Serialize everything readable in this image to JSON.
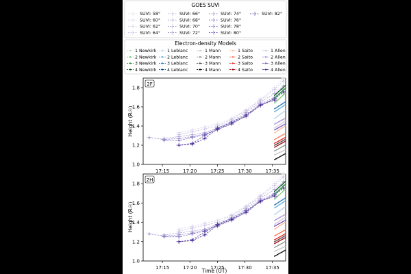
{
  "suvi_legend": {
    "title": "GOES SUVI",
    "entries": [
      {
        "label": "SUVI: 58°",
        "color": "#dcd6ec"
      },
      {
        "label": "SUVI: 60°",
        "color": "#d2cbe8"
      },
      {
        "label": "SUVI: 62°",
        "color": "#c8bfe3"
      },
      {
        "label": "SUVI: 64°",
        "color": "#bdb3df"
      },
      {
        "label": "SUVI: 66°",
        "color": "#b0a5d8"
      },
      {
        "label": "SUVI: 68°",
        "color": "#a397d1"
      },
      {
        "label": "SUVI: 70°",
        "color": "#9689c9"
      },
      {
        "label": "SUVI: 72°",
        "color": "#8a7ac2"
      },
      {
        "label": "SUVI: 74°",
        "color": "#7d6bba"
      },
      {
        "label": "SUVI: 76°",
        "color": "#705cb2"
      },
      {
        "label": "SUVI: 78°",
        "color": "#644ca9"
      },
      {
        "label": "SUVI: 80°",
        "color": "#563c9f"
      },
      {
        "label": "SUVI: 82°",
        "color": "#4a2c95"
      }
    ]
  },
  "model_legend": {
    "title": "Electron-density Models",
    "entries": [
      {
        "label": "1 Newkirk",
        "color": "#b9e3b8"
      },
      {
        "label": "2 Newkirk",
        "color": "#7fc97f"
      },
      {
        "label": "3 Newkirk",
        "color": "#2e9a3a"
      },
      {
        "label": "4 Newkirk",
        "color": "#0b5e20"
      },
      {
        "label": "1 Leblanc",
        "color": "#b7d4ea"
      },
      {
        "label": "2 Leblanc",
        "color": "#6baed6"
      },
      {
        "label": "3 Leblanc",
        "color": "#2a7ab8"
      },
      {
        "label": "4 Leblanc",
        "color": "#0b4584"
      },
      {
        "label": "1 Mann",
        "color": "#c8c8c8"
      },
      {
        "label": "2 Mann",
        "color": "#969696"
      },
      {
        "label": "3 Mann",
        "color": "#525252"
      },
      {
        "label": "4 Mann",
        "color": "#111111"
      },
      {
        "label": "1 Saito",
        "color": "#fcbba1"
      },
      {
        "label": "2 Saito",
        "color": "#fb7b5b"
      },
      {
        "label": "3 Saito",
        "color": "#e32f27"
      },
      {
        "label": "4 Saito",
        "color": "#9e0d14"
      },
      {
        "label": "1 Allen",
        "color": "#d4c8e4"
      },
      {
        "label": "2 Allen",
        "color": "#a995c9"
      },
      {
        "label": "3 Allen",
        "color": "#7a5fb0"
      },
      {
        "label": "4 Allen",
        "color": "#4a2c8a"
      }
    ]
  },
  "chart_data": [
    {
      "type": "scatter",
      "panel_label": "2F",
      "xlabel": "",
      "ylabel": "Height (R☉)",
      "x_ticks": [
        "17:15",
        "17:20",
        "17:25",
        "17:30",
        "17:35"
      ],
      "x_tick_minutes": [
        15,
        20,
        25,
        30,
        35
      ],
      "xlim_minutes": [
        11.5,
        37.4
      ],
      "ylim": [
        1.0,
        1.9
      ],
      "y_ticks": [
        1.0,
        1.2,
        1.4,
        1.6,
        1.8
      ],
      "suvi_series": [
        {
          "angle": "58°",
          "x": [
            18.0,
            20.4,
            22.7,
            25.0,
            27.6,
            30.2,
            32.8,
            35.4,
            37.0
          ],
          "y": [
            1.33,
            1.36,
            1.39,
            1.42,
            1.48,
            1.57,
            1.68,
            1.8,
            1.9
          ]
        },
        {
          "angle": "62°",
          "x": [
            18.0,
            20.4,
            22.7,
            25.0,
            27.6,
            30.2,
            32.8,
            35.4,
            37.0
          ],
          "y": [
            1.31,
            1.34,
            1.37,
            1.4,
            1.47,
            1.56,
            1.67,
            1.78,
            1.87
          ]
        },
        {
          "angle": "66°",
          "x": [
            15.3,
            18.0,
            20.4,
            22.7,
            25.0,
            27.6,
            30.2,
            32.8,
            35.4,
            37.0
          ],
          "y": [
            1.27,
            1.29,
            1.31,
            1.33,
            1.38,
            1.45,
            1.54,
            1.65,
            1.74,
            1.82
          ]
        },
        {
          "angle": "70°",
          "x": [
            12.6,
            15.3,
            18.0,
            20.4,
            22.7,
            25.0,
            27.6,
            30.2,
            32.8,
            35.4,
            37.0
          ],
          "y": [
            1.28,
            1.26,
            1.27,
            1.29,
            1.32,
            1.37,
            1.43,
            1.52,
            1.63,
            1.7,
            1.78
          ]
        },
        {
          "angle": "74°",
          "x": [
            15.3,
            18.0,
            20.4,
            22.7,
            25.0,
            27.6,
            30.2,
            32.8,
            35.4,
            37.0
          ],
          "y": [
            1.25,
            1.25,
            1.28,
            1.31,
            1.36,
            1.42,
            1.51,
            1.62,
            1.68,
            1.76
          ]
        },
        {
          "angle": "78°",
          "x": [
            18.0,
            20.4,
            22.7,
            25.0,
            27.6,
            30.2,
            32.8,
            35.4,
            37.0
          ],
          "y": [
            1.2,
            1.22,
            1.3,
            1.38,
            1.44,
            1.52,
            1.61,
            1.69,
            1.75
          ]
        },
        {
          "angle": "82°",
          "x": [
            18.0,
            20.4,
            22.7,
            25.0,
            27.6,
            30.2,
            32.8,
            35.4
          ],
          "y": [
            1.2,
            1.21,
            1.27,
            1.37,
            1.43,
            1.5,
            1.62,
            1.67
          ]
        }
      ]
    },
    {
      "type": "scatter",
      "panel_label": "2H",
      "xlabel": "Time (UT)",
      "ylabel": "Height (R☉)",
      "x_ticks": [
        "17:15",
        "17:20",
        "17:25",
        "17:30",
        "17:35"
      ],
      "x_tick_minutes": [
        15,
        20,
        25,
        30,
        35
      ],
      "xlim_minutes": [
        11.5,
        37.4
      ],
      "ylim": [
        1.0,
        1.9
      ],
      "y_ticks": [
        1.0,
        1.2,
        1.4,
        1.6,
        1.8
      ],
      "suvi_series": [
        {
          "angle": "58°",
          "x": [
            18.0,
            20.4,
            22.7,
            25.0,
            27.6,
            30.2,
            32.8,
            35.4,
            37.0
          ],
          "y": [
            1.33,
            1.36,
            1.39,
            1.42,
            1.48,
            1.57,
            1.68,
            1.8,
            1.9
          ]
        },
        {
          "angle": "62°",
          "x": [
            18.0,
            20.4,
            22.7,
            25.0,
            27.6,
            30.2,
            32.8,
            35.4,
            37.0
          ],
          "y": [
            1.31,
            1.34,
            1.37,
            1.4,
            1.47,
            1.56,
            1.67,
            1.78,
            1.87
          ]
        },
        {
          "angle": "66°",
          "x": [
            15.3,
            18.0,
            20.4,
            22.7,
            25.0,
            27.6,
            30.2,
            32.8,
            35.4,
            37.0
          ],
          "y": [
            1.27,
            1.29,
            1.31,
            1.33,
            1.38,
            1.45,
            1.54,
            1.65,
            1.74,
            1.82
          ]
        },
        {
          "angle": "70°",
          "x": [
            12.6,
            15.3,
            18.0,
            20.4,
            22.7,
            25.0,
            27.6,
            30.2,
            32.8,
            35.4,
            37.0
          ],
          "y": [
            1.28,
            1.26,
            1.27,
            1.29,
            1.32,
            1.37,
            1.43,
            1.52,
            1.63,
            1.7,
            1.78
          ]
        },
        {
          "angle": "74°",
          "x": [
            15.3,
            18.0,
            20.4,
            22.7,
            25.0,
            27.6,
            30.2,
            32.8,
            35.4,
            37.0
          ],
          "y": [
            1.25,
            1.25,
            1.28,
            1.31,
            1.36,
            1.42,
            1.51,
            1.62,
            1.68,
            1.76
          ]
        },
        {
          "angle": "78°",
          "x": [
            18.0,
            20.4,
            22.7,
            25.0,
            27.6,
            30.2,
            32.8,
            35.4,
            37.0
          ],
          "y": [
            1.2,
            1.22,
            1.3,
            1.38,
            1.44,
            1.52,
            1.61,
            1.69,
            1.75
          ]
        },
        {
          "angle": "82°",
          "x": [
            18.0,
            20.4,
            22.7,
            25.0,
            27.6,
            30.2,
            32.8,
            35.4
          ],
          "y": [
            1.2,
            1.21,
            1.27,
            1.37,
            1.43,
            1.5,
            1.62,
            1.67
          ]
        }
      ]
    }
  ],
  "model_tracks": {
    "x_start_minutes": 35.4,
    "x_end_minutes": 37.3,
    "tracks": [
      {
        "model": "2 Newkirk",
        "y_start": 1.64,
        "y_end": 1.74
      },
      {
        "model": "3 Newkirk",
        "y_start": 1.69,
        "y_end": 1.79
      },
      {
        "model": "4 Newkirk",
        "y_start": 1.72,
        "y_end": 1.82
      },
      {
        "model": "1 Leblanc",
        "y_start": 1.48,
        "y_end": 1.56
      },
      {
        "model": "2 Leblanc",
        "y_start": 1.55,
        "y_end": 1.62
      },
      {
        "model": "3 Leblanc",
        "y_start": 1.58,
        "y_end": 1.65
      },
      {
        "model": "1 Mann",
        "y_start": 1.1,
        "y_end": 1.15
      },
      {
        "model": "2 Mann",
        "y_start": 1.14,
        "y_end": 1.2
      },
      {
        "model": "3 Mann",
        "y_start": 1.2,
        "y_end": 1.26
      },
      {
        "model": "4 Mann",
        "y_start": 1.05,
        "y_end": 1.11
      },
      {
        "model": "1 Saito",
        "y_start": 1.33,
        "y_end": 1.4
      },
      {
        "model": "2 Saito",
        "y_start": 1.26,
        "y_end": 1.32
      },
      {
        "model": "3 Saito",
        "y_start": 1.22,
        "y_end": 1.28
      },
      {
        "model": "4 Saito",
        "y_start": 1.18,
        "y_end": 1.24
      },
      {
        "model": "1 Allen",
        "y_start": 1.38,
        "y_end": 1.45
      },
      {
        "model": "2 Allen",
        "y_start": 1.42,
        "y_end": 1.48
      },
      {
        "model": "3 Allen",
        "y_start": 1.36,
        "y_end": 1.42
      }
    ]
  }
}
